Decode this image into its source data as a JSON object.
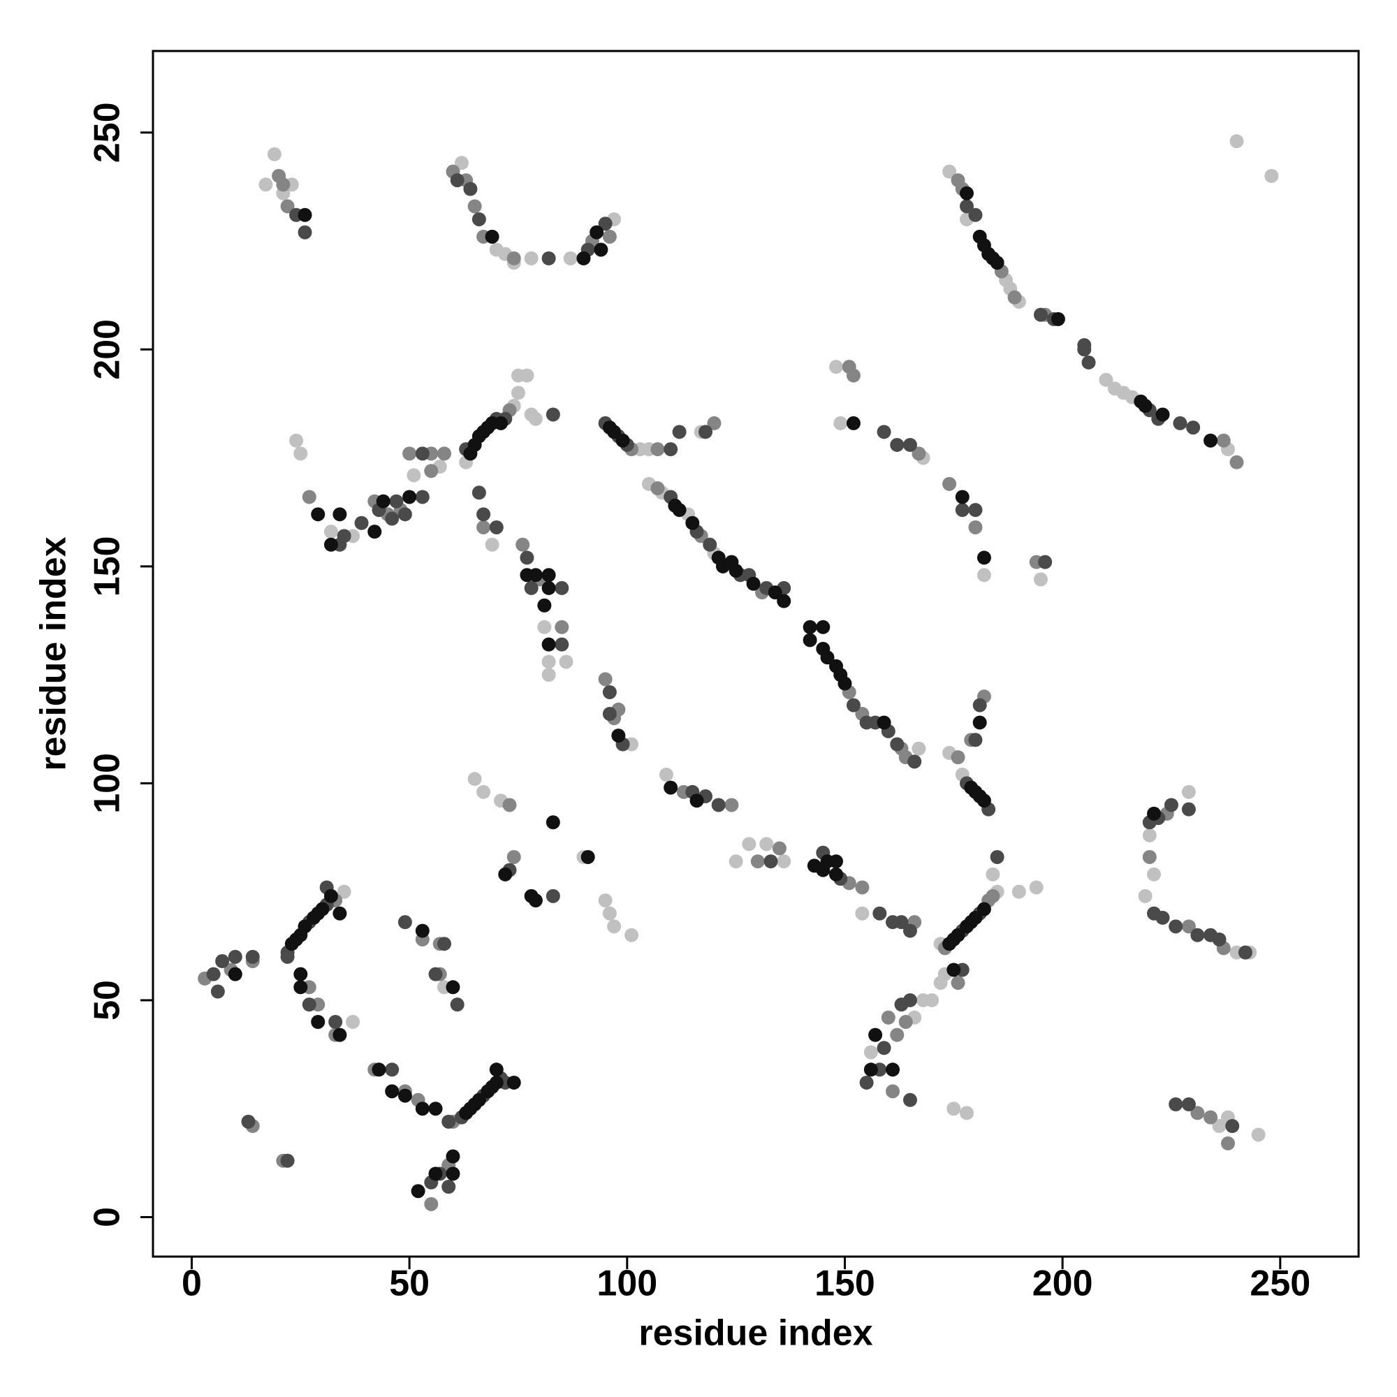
{
  "chart_data": {
    "type": "scatter",
    "xlabel": "residue index",
    "ylabel": "residue index",
    "xlim": [
      -8.9,
      268
    ],
    "ylim": [
      -9.1,
      268.8
    ],
    "xticks": [
      0,
      50,
      100,
      150,
      200,
      250
    ],
    "yticks": [
      0,
      50,
      100,
      150,
      200,
      250
    ],
    "series": [
      {
        "color": "#c0c0c0",
        "x": [
          35,
          37,
          58,
          24,
          25,
          32,
          37,
          51,
          57,
          63,
          74,
          75,
          75,
          77,
          78,
          79,
          69,
          81,
          82,
          86,
          82,
          101,
          65,
          67,
          71,
          90,
          95,
          96,
          97,
          101,
          103,
          105,
          117,
          105,
          108,
          114,
          120,
          167,
          174,
          177,
          109,
          125,
          128,
          132,
          136,
          154,
          172,
          185,
          184,
          190,
          194,
          173,
          172,
          170,
          168,
          166,
          156,
          175,
          178,
          174,
          178,
          187,
          188,
          190,
          210,
          212,
          214,
          216,
          238,
          240,
          248,
          148,
          149,
          168,
          182,
          195,
          229,
          220,
          221,
          219,
          240,
          243,
          236,
          238,
          245,
          17,
          19,
          21,
          23,
          62,
          70,
          72,
          74,
          78,
          87,
          97
        ],
        "values": [
          75,
          45,
          53,
          179,
          176,
          158,
          157,
          171,
          173,
          174,
          187,
          190,
          194,
          194,
          185,
          184,
          155,
          136,
          128,
          128,
          125,
          109,
          101,
          98,
          96,
          83,
          73,
          70,
          67,
          65,
          177,
          177,
          181,
          169,
          167,
          162,
          153,
          108,
          107,
          102,
          102,
          82,
          86,
          86,
          82,
          70,
          63,
          75,
          79,
          75,
          76,
          56,
          54,
          50,
          50,
          46,
          38,
          25,
          24,
          241,
          230,
          216,
          214,
          211,
          193,
          191,
          190,
          189,
          177,
          248,
          240,
          196,
          183,
          175,
          148,
          147,
          98,
          88,
          79,
          74,
          61,
          61,
          21,
          23,
          19,
          238,
          245,
          236,
          238,
          243,
          223,
          222,
          220,
          221,
          221,
          230
        ]
      },
      {
        "color": "#858585",
        "x": [
          33,
          3,
          9,
          14,
          27,
          29,
          33,
          14,
          21,
          42,
          49,
          52,
          60,
          55,
          59,
          53,
          57,
          57,
          27,
          42,
          45,
          48,
          50,
          55,
          55,
          58,
          73,
          67,
          76,
          80,
          85,
          95,
          97,
          98,
          73,
          74,
          101,
          107,
          120,
          107,
          117,
          131,
          151,
          154,
          163,
          164,
          176,
          179,
          182,
          113,
          124,
          130,
          135,
          151,
          154,
          166,
          173,
          183,
          184,
          176,
          164,
          162,
          160,
          161,
          176,
          177,
          186,
          189,
          196,
          237,
          240,
          151,
          152,
          167,
          174,
          180,
          194,
          224,
          220,
          229,
          237,
          231,
          234,
          238,
          20,
          21,
          22,
          60,
          63,
          65,
          67,
          74,
          92,
          96
        ],
        "values": [
          73,
          55,
          57,
          59,
          53,
          49,
          42,
          21,
          13,
          34,
          29,
          27,
          22,
          3,
          12,
          64,
          63,
          56,
          166,
          165,
          162,
          163,
          176,
          172,
          176,
          176,
          186,
          159,
          155,
          147,
          136,
          124,
          115,
          117,
          95,
          83,
          177,
          177,
          183,
          168,
          157,
          144,
          121,
          116,
          108,
          106,
          106,
          110,
          120,
          98,
          95,
          82,
          85,
          77,
          76,
          68,
          62,
          73,
          74,
          54,
          45,
          42,
          46,
          29,
          239,
          237,
          218,
          212,
          208,
          179,
          174,
          196,
          194,
          176,
          169,
          159,
          151,
          93,
          83,
          67,
          62,
          24,
          23,
          17,
          240,
          238,
          233,
          241,
          239,
          233,
          226,
          221,
          225,
          226
        ]
      },
      {
        "color": "#4a4a4a",
        "x": [
          22,
          27,
          31,
          31,
          22,
          5,
          6,
          7,
          10,
          14,
          27,
          33,
          13,
          22,
          46,
          59,
          62,
          67,
          71,
          72,
          55,
          57,
          59,
          49,
          58,
          56,
          61,
          34,
          35,
          39,
          43,
          46,
          47,
          49,
          53,
          53,
          63,
          70,
          72,
          83,
          66,
          67,
          70,
          77,
          78,
          85,
          85,
          96,
          96,
          99,
          73,
          83,
          95,
          98,
          100,
          110,
          112,
          118,
          110,
          116,
          119,
          126,
          128,
          132,
          136,
          152,
          155,
          157,
          160,
          162,
          166,
          178,
          183,
          180,
          181,
          115,
          118,
          121,
          133,
          145,
          149,
          158,
          161,
          163,
          165,
          177,
          181,
          185,
          177,
          165,
          163,
          159,
          155,
          158,
          165,
          178,
          180,
          195,
          198,
          205,
          205,
          206,
          220,
          222,
          227,
          230,
          159,
          162,
          165,
          177,
          180,
          196,
          220,
          222,
          225,
          229,
          221,
          223,
          226,
          231,
          234,
          236,
          242,
          226,
          229,
          239,
          24,
          26,
          61,
          64,
          66,
          82,
          91,
          95
        ],
        "values": [
          61,
          68,
          72,
          76,
          60,
          56,
          52,
          59,
          60,
          60,
          49,
          45,
          22,
          13,
          34,
          22,
          23,
          28,
          32,
          31,
          8,
          10,
          7,
          68,
          63,
          56,
          49,
          155,
          157,
          160,
          163,
          161,
          165,
          162,
          176,
          166,
          177,
          184,
          184,
          185,
          167,
          162,
          159,
          152,
          145,
          145,
          132,
          121,
          116,
          109,
          80,
          74,
          183,
          180,
          178,
          177,
          181,
          181,
          166,
          158,
          155,
          148,
          148,
          145,
          145,
          118,
          114,
          114,
          112,
          109,
          105,
          100,
          94,
          110,
          118,
          98,
          97,
          95,
          82,
          84,
          78,
          70,
          68,
          68,
          66,
          66,
          70,
          83,
          57,
          50,
          49,
          39,
          31,
          34,
          27,
          233,
          231,
          208,
          207,
          200,
          201,
          197,
          186,
          184,
          183,
          182,
          181,
          178,
          178,
          163,
          163,
          151,
          91,
          92,
          95,
          94,
          70,
          69,
          67,
          65,
          65,
          64,
          61,
          26,
          26,
          21,
          231,
          227,
          239,
          237,
          230,
          221,
          223,
          229
        ]
      },
      {
        "color": "#111111",
        "x": [
          23,
          24,
          25,
          26,
          28,
          29,
          30,
          32,
          34,
          10,
          25,
          25,
          29,
          34,
          43,
          46,
          49,
          53,
          56,
          63,
          64,
          65,
          66,
          68,
          69,
          70,
          74,
          70,
          52,
          56,
          60,
          60,
          53,
          60,
          29,
          32,
          34,
          42,
          44,
          50,
          64,
          65,
          66,
          67,
          68,
          69,
          71,
          77,
          79,
          81,
          82,
          82,
          82,
          98,
          83,
          91,
          72,
          78,
          79,
          96,
          97,
          99,
          111,
          112,
          115,
          121,
          122,
          124,
          125,
          129,
          134,
          136,
          142,
          142,
          145,
          145,
          146,
          148,
          149,
          150,
          159,
          179,
          180,
          181,
          182,
          181,
          110,
          116,
          143,
          145,
          146,
          148,
          148,
          174,
          175,
          176,
          178,
          179,
          180,
          182,
          175,
          157,
          156,
          161,
          178,
          181,
          182,
          183,
          184,
          185,
          199,
          218,
          219,
          223,
          234,
          152,
          177,
          182,
          221,
          26,
          69,
          90,
          93,
          94
        ],
        "values": [
          63,
          64,
          65,
          67,
          69,
          70,
          71,
          74,
          70,
          56,
          56,
          53,
          45,
          42,
          34,
          29,
          28,
          25,
          25,
          24,
          25,
          26,
          27,
          29,
          30,
          31,
          31,
          34,
          6,
          10,
          10,
          14,
          66,
          53,
          162,
          155,
          162,
          158,
          165,
          166,
          176,
          178,
          180,
          181,
          182,
          183,
          183,
          148,
          148,
          141,
          148,
          145,
          132,
          111,
          91,
          83,
          79,
          74,
          73,
          182,
          181,
          179,
          164,
          163,
          160,
          152,
          150,
          151,
          149,
          146,
          144,
          142,
          136,
          133,
          136,
          131,
          129,
          127,
          125,
          123,
          114,
          99,
          98,
          97,
          96,
          114,
          99,
          96,
          81,
          80,
          82,
          79,
          82,
          63,
          64,
          65,
          67,
          68,
          69,
          71,
          57,
          42,
          34,
          34,
          236,
          226,
          224,
          222,
          221,
          220,
          207,
          188,
          187,
          185,
          179,
          183,
          166,
          152,
          93,
          231,
          226,
          221,
          227,
          223
        ]
      }
    ]
  }
}
